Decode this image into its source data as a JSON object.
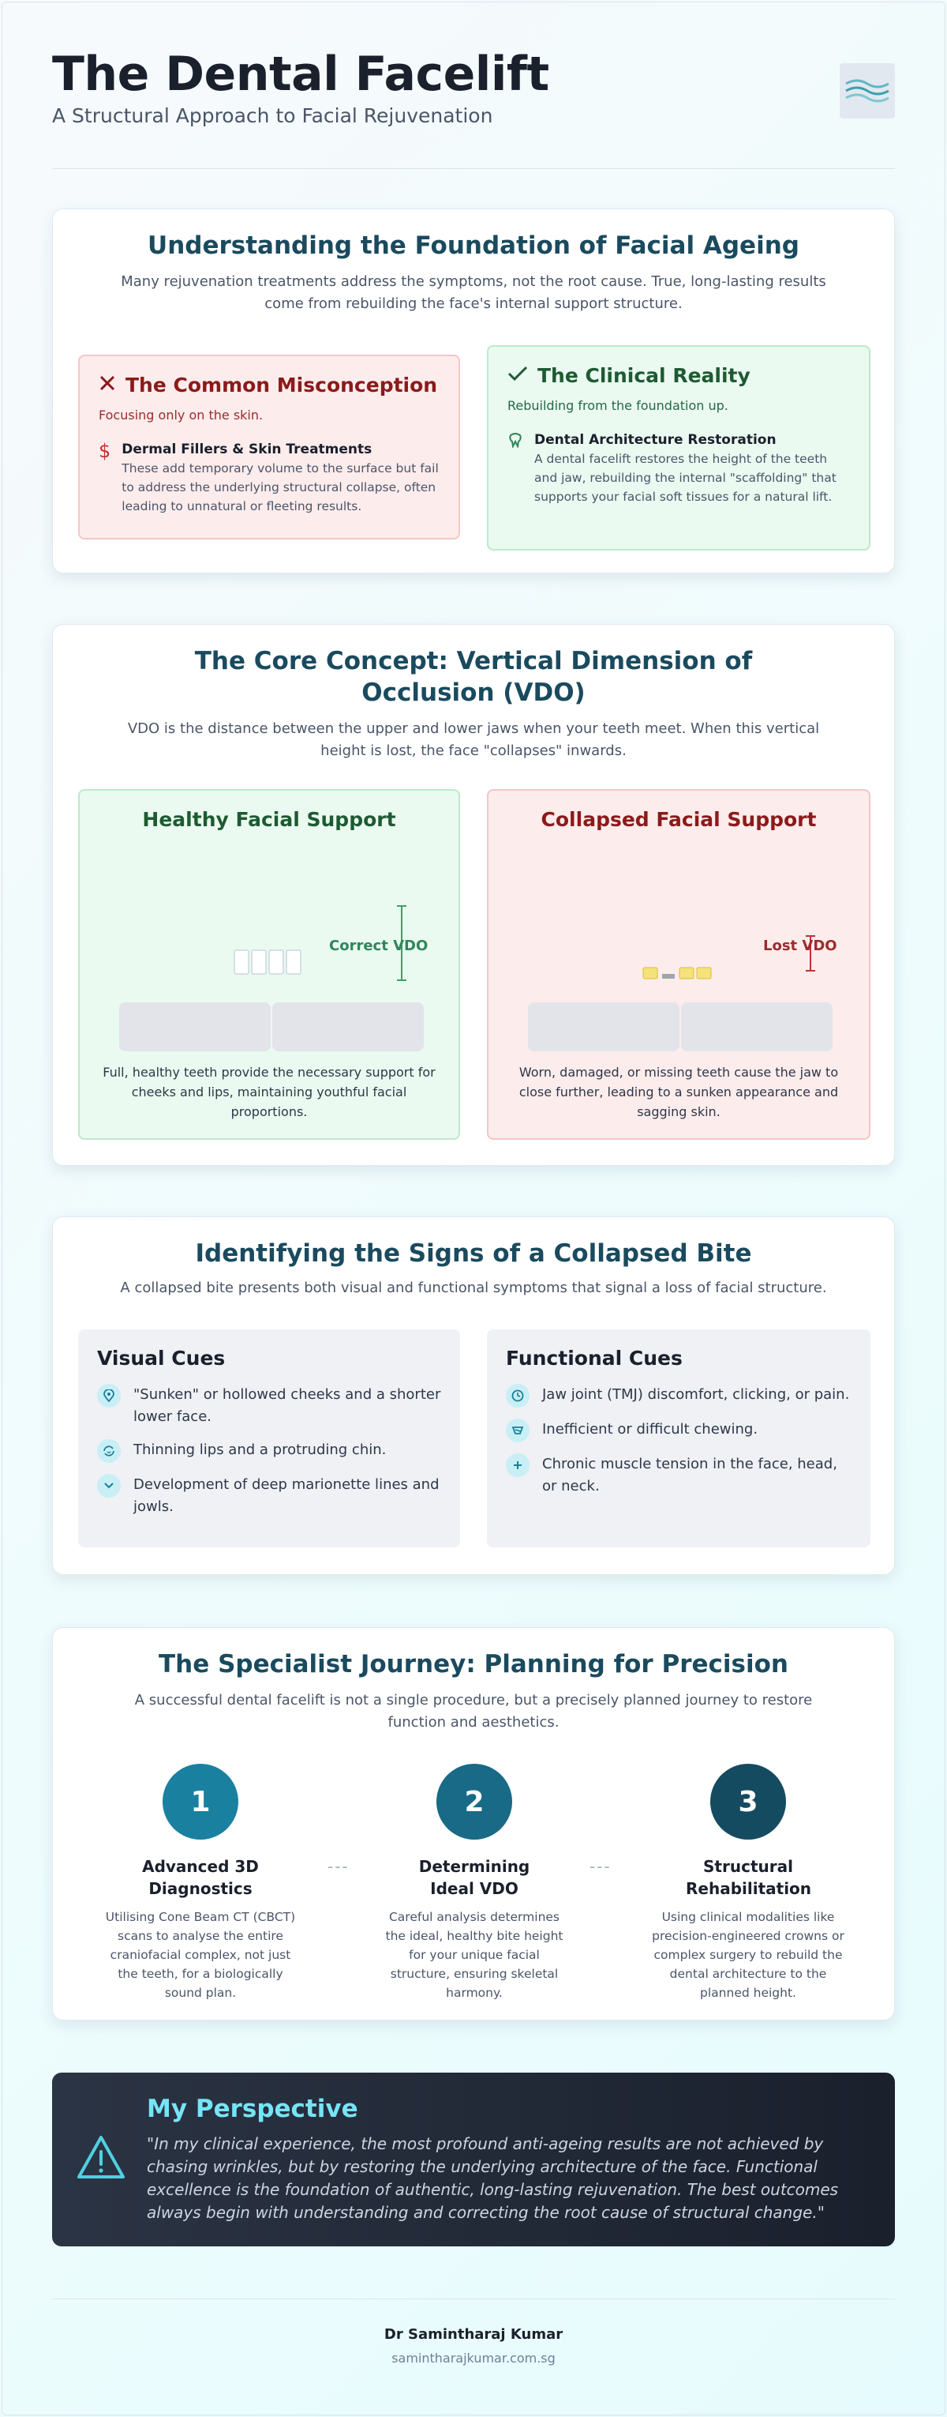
{
  "header": {
    "title": "The Dental Facelift",
    "subtitle": "A Structural Approach to Facial Rejuvenation"
  },
  "foundation": {
    "title": "Understanding the Foundation of Facial Ageing",
    "intro": "Many rejuvenation treatments address the symptoms, not the root cause. True, long-lasting results come from rebuilding the face's internal support structure.",
    "misconception": {
      "title": "The Common Misconception",
      "subtitle": "Focusing only on the skin.",
      "item_title": "Dermal Fillers & Skin Treatments",
      "item_text": "These add temporary volume to the surface but fail to address the underlying structural collapse, often leading to unnatural or fleeting results.",
      "icon": "dollar-icon"
    },
    "reality": {
      "title": "The Clinical Reality",
      "subtitle": "Rebuilding from the foundation up.",
      "item_title": "Dental Architecture Restoration",
      "item_text": "A dental facelift restores the height of the teeth and jaw, rebuilding the internal \"scaffolding\" that supports your facial soft tissues for a natural lift.",
      "icon": "tooth-icon"
    }
  },
  "vdo": {
    "title": "The Core Concept: Vertical Dimension of Occlusion (VDO)",
    "intro": "VDO is the distance between the upper and lower jaws when your teeth meet. When this vertical height is lost, the face \"collapses\" inwards.",
    "healthy": {
      "title": "Healthy Facial Support",
      "label": "Correct VDO",
      "caption": "Full, healthy teeth provide the necessary support for cheeks and lips, maintaining youthful facial proportions."
    },
    "collapsed": {
      "title": "Collapsed Facial Support",
      "label": "Lost VDO",
      "caption": "Worn, damaged, or missing teeth cause the jaw to close further, leading to a sunken appearance and sagging skin."
    }
  },
  "signs": {
    "title": "Identifying the Signs of a Collapsed Bite",
    "intro": "A collapsed bite presents both visual and functional symptoms that signal a loss of facial structure.",
    "visual": {
      "title": "Visual Cues",
      "items": [
        "\"Sunken\" or hollowed cheeks and a shorter lower face.",
        "Thinning lips and a protruding chin.",
        "Development of deep marionette lines and jowls."
      ]
    },
    "functional": {
      "title": "Functional Cues",
      "items": [
        "Jaw joint (TMJ) discomfort, clicking, or pain.",
        "Inefficient or difficult chewing.",
        "Chronic muscle tension in the face, head, or neck."
      ]
    }
  },
  "journey": {
    "title": "The Specialist Journey: Planning for Precision",
    "intro": "A successful dental facelift is not a single procedure, but a precisely planned journey to restore function and aesthetics.",
    "separator": "---",
    "steps": [
      {
        "number": "1",
        "title": "Advanced 3D Diagnostics",
        "text": "Utilising Cone Beam CT (CBCT) scans to analyse the entire craniofacial complex, not just the teeth, for a biologically sound plan.",
        "color": "#1a80a0"
      },
      {
        "number": "2",
        "title": "Determining Ideal VDO",
        "text": "Careful analysis determines the ideal, healthy bite height for your unique facial structure, ensuring skeletal harmony.",
        "color": "#186a86"
      },
      {
        "number": "3",
        "title": "Structural Rehabilitation",
        "text": "Using clinical modalities like precision-engineered crowns or complex surgery to rebuild the dental architecture to the planned height.",
        "color": "#154b60"
      }
    ]
  },
  "perspective": {
    "title": "My Perspective",
    "quote": "\"In my clinical experience, the most profound anti-ageing results are not achieved by chasing wrinkles, but by restoring the underlying architecture of the face. Functional excellence is the foundation of authentic, long-lasting rejuvenation. The best outcomes always begin with understanding and correcting the root cause of structural change.\""
  },
  "footer": {
    "name": "Dr Samintharaj Kumar",
    "site": "samintharajkumar.com.sg"
  },
  "colors": {
    "accent_teal": "#1a4a5e",
    "misconception_red": "#8b1a1a",
    "reality_green": "#1e5a32",
    "perspective_cyan": "#76e4f7"
  }
}
